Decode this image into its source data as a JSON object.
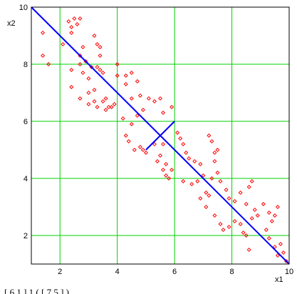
{
  "caption_fragment": "[ 6 1 ]     1     ( [ 7 5 ] )",
  "chart_data": {
    "type": "scatter",
    "title": "",
    "xlabel": "x1",
    "ylabel": "x2",
    "xlim": [
      1,
      10
    ],
    "ylim": [
      1,
      10
    ],
    "xticks": [
      2,
      4,
      6,
      8,
      10
    ],
    "yticks": [
      2,
      4,
      6,
      8,
      10
    ],
    "grid": true,
    "legend": "none",
    "colors": {
      "points": "#ff0000",
      "lines": "#0000ff",
      "grid": "#00d000",
      "frame": "#000000"
    },
    "points": [
      [
        1.4,
        9.1
      ],
      [
        1.4,
        8.3
      ],
      [
        1.6,
        8.0
      ],
      [
        2.1,
        8.7
      ],
      [
        2.3,
        9.5
      ],
      [
        2.4,
        9.3
      ],
      [
        2.4,
        9.1
      ],
      [
        2.5,
        9.6
      ],
      [
        2.6,
        9.4
      ],
      [
        2.7,
        9.6
      ],
      [
        2.8,
        8.6
      ],
      [
        2.7,
        8.3
      ],
      [
        2.7,
        8.0
      ],
      [
        2.9,
        8.1
      ],
      [
        2.4,
        7.8
      ],
      [
        2.8,
        7.7
      ],
      [
        3.1,
        7.9
      ],
      [
        3.0,
        7.5
      ],
      [
        3.2,
        9.0
      ],
      [
        3.3,
        8.7
      ],
      [
        3.4,
        8.6
      ],
      [
        3.4,
        8.3
      ],
      [
        3.3,
        7.9
      ],
      [
        3.4,
        7.8
      ],
      [
        3.5,
        7.7
      ],
      [
        2.4,
        7.2
      ],
      [
        2.7,
        6.8
      ],
      [
        3.0,
        7.0
      ],
      [
        3.2,
        7.1
      ],
      [
        3.0,
        6.6
      ],
      [
        3.2,
        6.7
      ],
      [
        3.3,
        6.5
      ],
      [
        3.5,
        6.7
      ],
      [
        3.6,
        6.4
      ],
      [
        3.7,
        6.5
      ],
      [
        3.8,
        6.5
      ],
      [
        3.9,
        6.6
      ],
      [
        3.6,
        6.8
      ],
      [
        4.0,
        8.0
      ],
      [
        4.0,
        7.6
      ],
      [
        4.3,
        7.3
      ],
      [
        4.3,
        7.6
      ],
      [
        4.5,
        7.7
      ],
      [
        4.5,
        6.8
      ],
      [
        4.7,
        7.4
      ],
      [
        4.8,
        6.9
      ],
      [
        4.9,
        6.4
      ],
      [
        5.1,
        6.8
      ],
      [
        5.3,
        6.7
      ],
      [
        5.5,
        6.8
      ],
      [
        5.6,
        6.3
      ],
      [
        5.9,
        6.5
      ],
      [
        4.2,
        6.1
      ],
      [
        4.3,
        5.5
      ],
      [
        4.4,
        5.3
      ],
      [
        4.5,
        5.9
      ],
      [
        4.7,
        6.2
      ],
      [
        4.6,
        5.0
      ],
      [
        4.8,
        5.1
      ],
      [
        4.9,
        5.0
      ],
      [
        5.0,
        4.9
      ],
      [
        5.3,
        5.2
      ],
      [
        5.5,
        4.8
      ],
      [
        5.6,
        5.2
      ],
      [
        5.7,
        4.5
      ],
      [
        5.7,
        4.1
      ],
      [
        5.8,
        4.0
      ],
      [
        5.4,
        4.6
      ],
      [
        5.6,
        4.3
      ],
      [
        5.9,
        4.3
      ],
      [
        6.1,
        5.6
      ],
      [
        6.2,
        5.4
      ],
      [
        6.3,
        5.2
      ],
      [
        6.4,
        4.9
      ],
      [
        6.5,
        4.7
      ],
      [
        6.7,
        4.6
      ],
      [
        6.9,
        4.5
      ],
      [
        7.0,
        4.1
      ],
      [
        6.8,
        3.9
      ],
      [
        7.1,
        3.5
      ],
      [
        7.2,
        3.4
      ],
      [
        7.3,
        4.0
      ],
      [
        7.4,
        4.6
      ],
      [
        7.5,
        4.2
      ],
      [
        6.3,
        3.9
      ],
      [
        6.6,
        3.8
      ],
      [
        6.9,
        3.3
      ],
      [
        7.1,
        3.0
      ],
      [
        7.2,
        5.5
      ],
      [
        7.3,
        5.3
      ],
      [
        7.4,
        4.9
      ],
      [
        7.5,
        5.0
      ],
      [
        7.6,
        3.9
      ],
      [
        7.8,
        3.6
      ],
      [
        7.9,
        3.3
      ],
      [
        8.1,
        3.2
      ],
      [
        8.3,
        3.5
      ],
      [
        8.5,
        3.1
      ],
      [
        8.6,
        3.7
      ],
      [
        8.7,
        3.9
      ],
      [
        8.8,
        2.9
      ],
      [
        7.4,
        2.7
      ],
      [
        7.6,
        2.4
      ],
      [
        7.7,
        2.2
      ],
      [
        7.9,
        2.3
      ],
      [
        8.1,
        2.5
      ],
      [
        8.3,
        2.4
      ],
      [
        8.4,
        2.1
      ],
      [
        8.5,
        2.0
      ],
      [
        8.7,
        2.6
      ],
      [
        8.9,
        2.7
      ],
      [
        9.1,
        3.1
      ],
      [
        9.3,
        2.8
      ],
      [
        9.4,
        2.5
      ],
      [
        9.5,
        2.7
      ],
      [
        9.6,
        3.0
      ],
      [
        9.2,
        2.2
      ],
      [
        9.3,
        1.9
      ],
      [
        9.5,
        1.6
      ],
      [
        9.6,
        1.3
      ],
      [
        9.7,
        1.7
      ],
      [
        9.8,
        1.4
      ],
      [
        9.9,
        1.1
      ],
      [
        8.6,
        1.5
      ]
    ],
    "lines": [
      {
        "x": [
          1,
          10
        ],
        "y": [
          10,
          1
        ]
      },
      {
        "x": [
          5,
          6
        ],
        "y": [
          5,
          6
        ]
      }
    ]
  }
}
